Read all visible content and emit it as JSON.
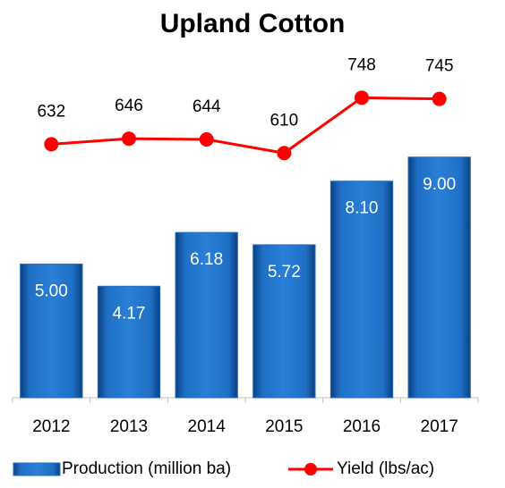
{
  "chart_data": {
    "type": "bar",
    "title": "Upland Cotton",
    "categories": [
      "2012",
      "2013",
      "2014",
      "2015",
      "2016",
      "2017"
    ],
    "series": [
      {
        "name": "Production (million ba)",
        "type": "bar",
        "color": "#1f6fc5",
        "values": [
          5.0,
          4.17,
          6.18,
          5.72,
          8.1,
          9.0
        ],
        "value_labels": [
          "5.00",
          "4.17",
          "6.18",
          "5.72",
          "8.10",
          "9.00"
        ]
      },
      {
        "name": "Yield (lbs/ac)",
        "type": "line",
        "axis": "y2",
        "color": "#ff0000",
        "values": [
          632,
          646,
          644,
          610,
          748,
          745
        ]
      }
    ],
    "ylim": [
      0,
      12
    ],
    "y2lim": [
      0,
      800
    ],
    "legend": "bottom"
  }
}
